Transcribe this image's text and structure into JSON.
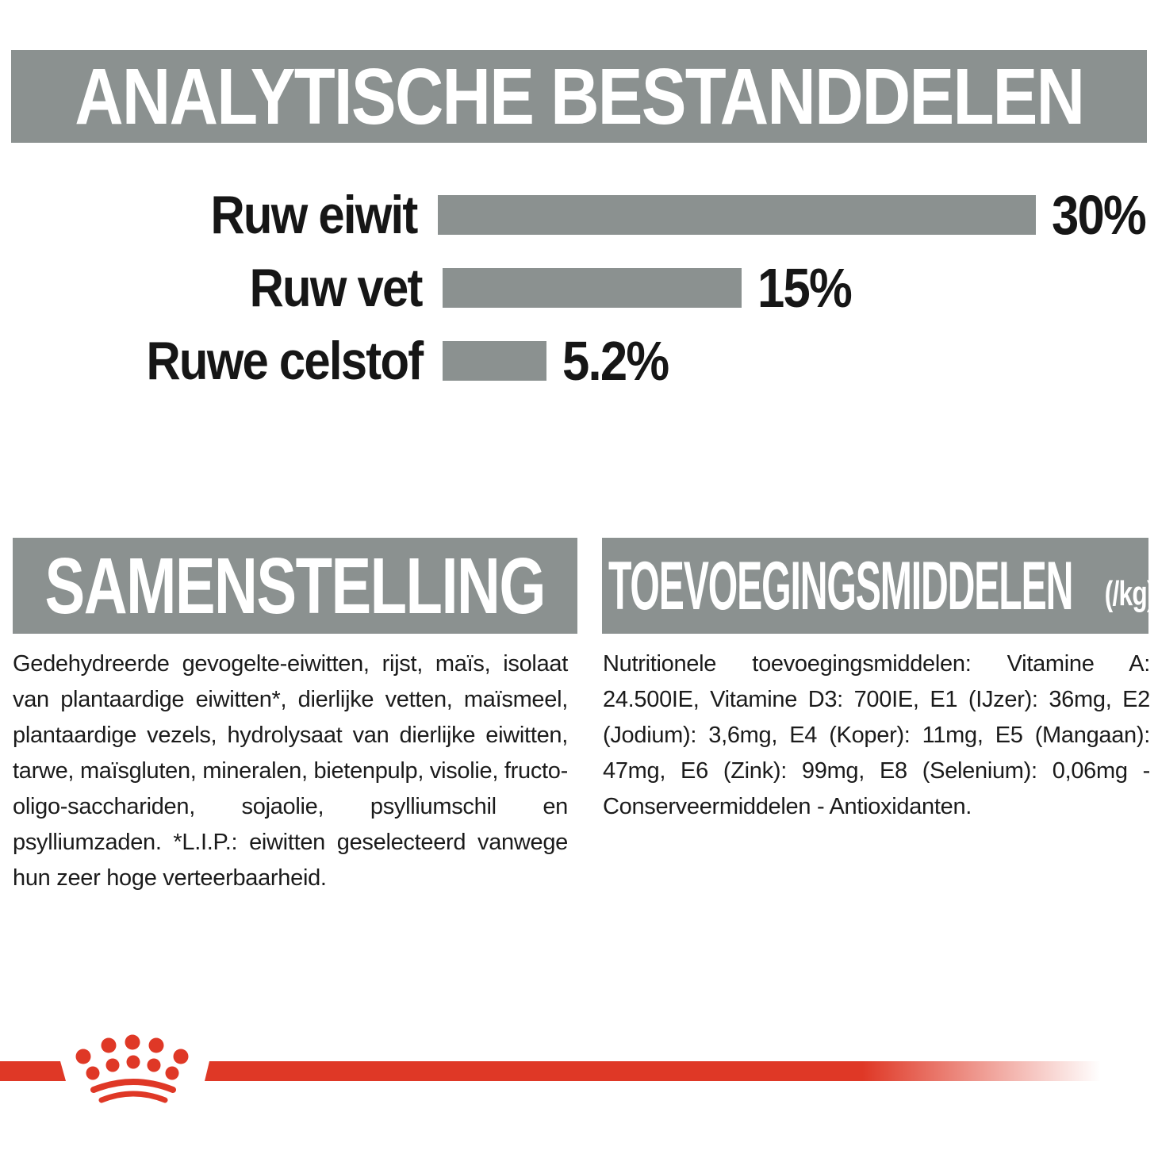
{
  "colors": {
    "gray": "#8B9190",
    "red": "#DF3826",
    "text": "#1b1b1b",
    "white": "#ffffff"
  },
  "analytical": {
    "title": "ANALYTISCHE BESTANDDELEN"
  },
  "chart_data": {
    "type": "bar",
    "orientation": "horizontal",
    "categories": [
      "Ruw eiwit",
      "Ruw vet",
      "Ruwe celstof"
    ],
    "values": [
      30,
      15,
      5.2
    ],
    "value_labels": [
      "30%",
      "15%",
      "5.2%"
    ],
    "xlim": [
      0,
      30
    ],
    "bar_color": "#8B9190",
    "grid": false,
    "legend": false,
    "title": "",
    "xlabel": "",
    "ylabel": ""
  },
  "composition": {
    "title": "SAMENSTELLING",
    "body": "Gedehydreerde gevogelte-eiwitten, rijst, maïs, isolaat van plantaardige eiwitten*, dierlijke vetten, maïsmeel, plantaardige vezels, hydrolysaat van dierlijke eiwitten, tarwe, maïsgluten, mineralen, bietenpulp, visolie, fructo-oligo-sacchariden, sojaolie, psylliumschil en psylliumzaden. *L.I.P.: eiwitten geselecteerd vanwege hun zeer hoge verteerbaarheid."
  },
  "additives": {
    "title": "TOEVOEGINGSMIDDELEN",
    "suffix": "(/kg)",
    "body": "Nutritionele toevoegingsmiddelen: Vitamine A: 24.500IE, Vitamine D3: 700IE, E1 (IJzer): 36mg, E2 (Jodium): 3,6mg, E4 (Koper): 11mg, E5 (Mangaan): 47mg, E6 (Zink): 99mg, E8 (Selenium): 0,06mg - Conserveermiddelen - Antioxidanten."
  },
  "footer": {
    "logo": "royal-canin-crown"
  }
}
